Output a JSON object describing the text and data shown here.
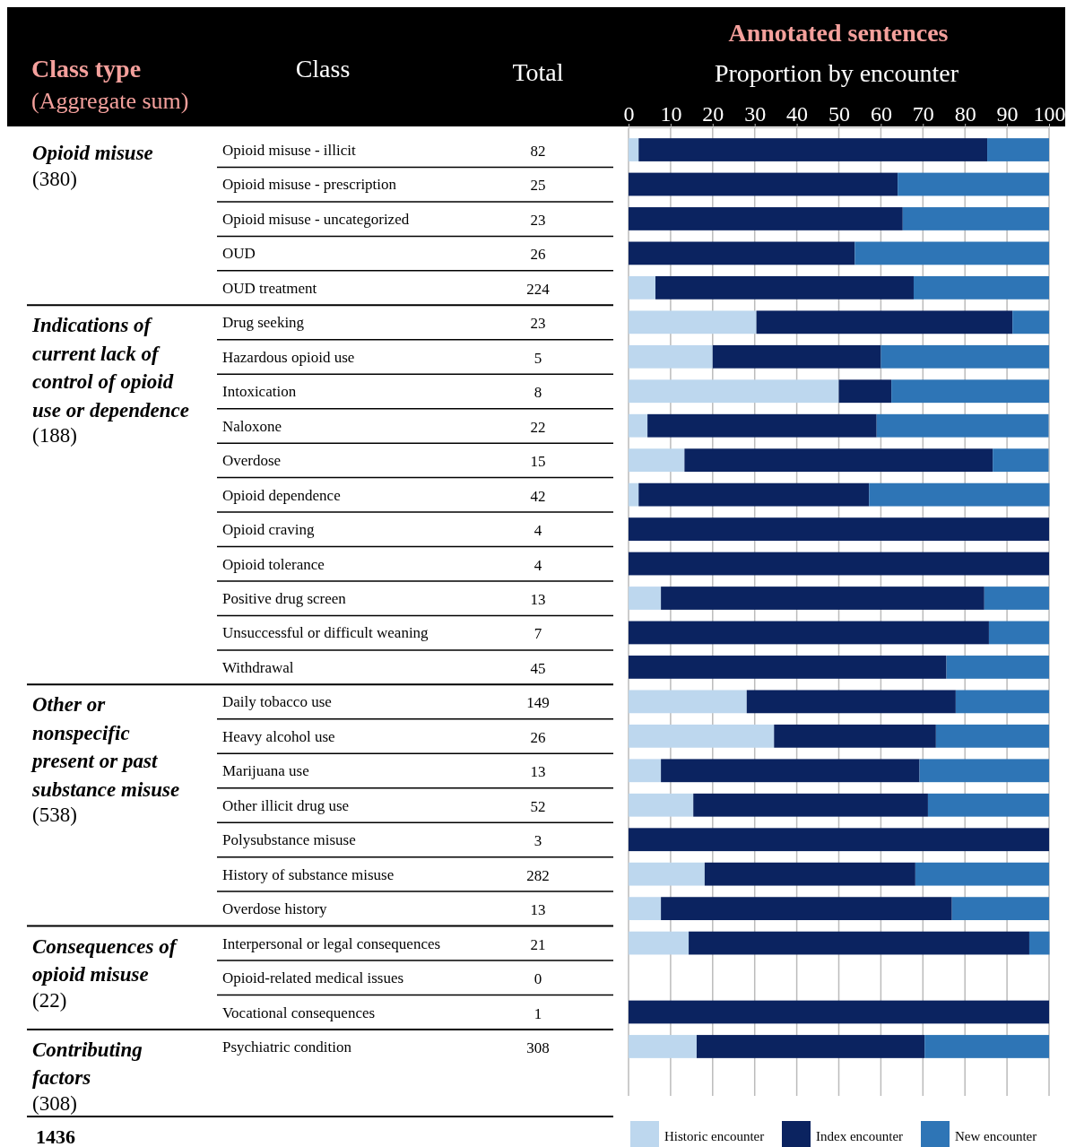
{
  "chart_data": {
    "type": "bar",
    "orientation": "horizontal",
    "stacked": true,
    "title": "Annotated sentences",
    "xlabel": "Proportion by encounter",
    "categories": [
      "Opioid misuse - illicit",
      "Opioid misuse - prescription",
      "Opioid misuse - uncategorized",
      "OUD",
      "OUD treatment",
      "Drug seeking",
      "Hazardous opioid use",
      "Intoxication",
      "Naloxone",
      "Overdose",
      "Opioid dependence",
      "Opioid craving",
      "Opioid tolerance",
      "Positive drug screen",
      "Unsuccessful or difficult weaning",
      "Withdrawal",
      "Daily tobacco use",
      "Heavy alcohol use",
      "Marijuana use",
      "Other illicit drug use",
      "Polysubstance misuse",
      "History of substance misuse",
      "Overdose history",
      "Interpersonal or legal consequences",
      "Opioid-related medical issues",
      "Vocational consequences",
      "Psychiatric condition"
    ],
    "series": [
      {
        "name": "Historic encounter",
        "color": "#bdd7ee",
        "axis": "x2",
        "values": [
          2.4,
          0,
          0,
          0,
          6.4,
          30.4,
          20,
          50,
          4.5,
          13.3,
          2.4,
          0,
          0,
          7.7,
          0,
          0,
          28.1,
          34.6,
          7.7,
          15.4,
          0,
          18.1,
          7.7,
          14.3,
          null,
          0,
          16.2
        ]
      },
      {
        "name": "Index encounter",
        "color": "#0b2360",
        "axis": "x2",
        "values": [
          82.9,
          64,
          65.2,
          53.8,
          61.4,
          60.9,
          40,
          12.5,
          54.5,
          73.3,
          54.8,
          100,
          100,
          76.9,
          85.7,
          75.6,
          49.7,
          38.5,
          61.5,
          55.8,
          100,
          50.1,
          69.2,
          81,
          null,
          100,
          54.2
        ]
      },
      {
        "name": "New encounter",
        "color": "#2e75b6",
        "axis": "x2",
        "values": [
          14.7,
          36,
          34.8,
          46.2,
          32.2,
          8.7,
          40,
          37.5,
          40.9,
          13.3,
          42.9,
          0,
          0,
          15.4,
          14.3,
          24.4,
          22.2,
          26.9,
          30.8,
          28.8,
          0,
          31.8,
          23.1,
          4.8,
          null,
          0,
          29.6
        ]
      }
    ],
    "x2lim": [
      0,
      100
    ],
    "x2ticks": [
      0,
      10,
      20,
      30,
      40,
      50,
      60,
      70,
      80,
      90,
      100
    ],
    "grid": "x",
    "legend": "bottom",
    "annotations": [
      "Class type",
      "(Aggregate sum)",
      "Class",
      "Total",
      "1436",
      "Opioid misuse",
      "(380)",
      "Indications of current lack of control of opioid use or dependence",
      "(188)",
      "Other or nonspecific present or past substance misuse",
      "(538)",
      "Consequences of opioid misuse",
      "(22)",
      "Contributing factors",
      "(308)",
      "82",
      "25",
      "23",
      "26",
      "224",
      "23",
      "5",
      "8",
      "22",
      "15",
      "42",
      "4",
      "4",
      "13",
      "7",
      "45",
      "149",
      "26",
      "13",
      "52",
      "3",
      "282",
      "13",
      "21",
      "0",
      "1",
      "308"
    ]
  }
}
